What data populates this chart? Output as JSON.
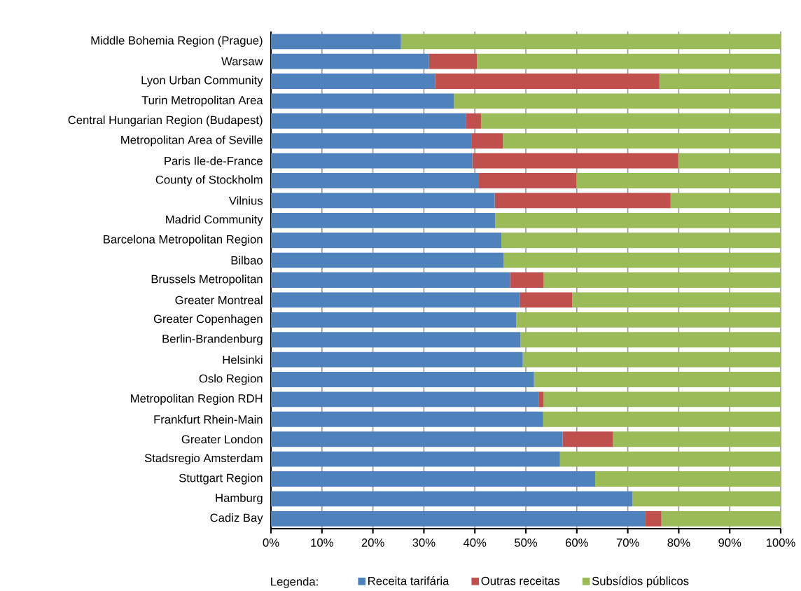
{
  "chart_data": {
    "type": "bar",
    "orientation": "horizontal",
    "stacked": true,
    "categories": [
      "Middle Bohemia Region (Prague)",
      "Warsaw",
      "Lyon Urban Community",
      "Turin Metropolitan Area",
      "Central Hungarian Region (Budapest)",
      "Metropolitan Area of Seville",
      "Paris Ile-de-France",
      "County of Stockholm",
      "Vilnius",
      "Madrid Community",
      "Barcelona Metropolitan Region",
      "Bilbao",
      "Brussels Metropolitan",
      "Greater Montreal",
      "Greater Copenhagen",
      "Berlin-Brandenburg",
      "Helsinki",
      "Oslo Region",
      "Metropolitan Region RDH",
      "Frankfurt Rhein-Main",
      "Greater London",
      "Stadsregio Amsterdam",
      "Stuttgart Region",
      "Hamburg",
      "Cadiz Bay"
    ],
    "series": [
      {
        "name": "Receita tarifária",
        "color": "#4f81bd",
        "values": [
          25.5,
          31.0,
          32.2,
          35.9,
          38.3,
          39.3,
          39.5,
          40.8,
          43.9,
          44.0,
          45.2,
          45.6,
          46.9,
          48.8,
          48.1,
          48.9,
          49.4,
          51.6,
          52.5,
          53.4,
          57.2,
          56.7,
          63.6,
          70.9,
          73.5
        ]
      },
      {
        "name": "Outras receitas",
        "color": "#c0504d",
        "values": [
          0,
          9.4,
          44.0,
          0,
          2.9,
          6.2,
          40.4,
          19.1,
          34.5,
          0,
          0,
          0,
          6.6,
          10.3,
          0,
          0,
          0,
          0,
          1.0,
          0,
          9.9,
          0,
          0,
          0,
          3.1
        ]
      },
      {
        "name": "Subsídios públicos",
        "color": "#9bbb59",
        "values": [
          74.5,
          59.6,
          23.8,
          64.1,
          58.8,
          54.5,
          20.1,
          40.1,
          21.6,
          56.0,
          54.8,
          54.4,
          46.5,
          40.9,
          51.9,
          51.1,
          50.6,
          48.4,
          46.5,
          46.6,
          32.9,
          43.3,
          36.4,
          29.1,
          23.4
        ]
      }
    ],
    "xlim": [
      0,
      100
    ],
    "xticks": [
      {
        "value": 0,
        "label": "0%"
      },
      {
        "value": 10,
        "label": "10%"
      },
      {
        "value": 20,
        "label": "20%"
      },
      {
        "value": 30,
        "label": "30%"
      },
      {
        "value": 40,
        "label": "40%"
      },
      {
        "value": 50,
        "label": "50%"
      },
      {
        "value": 60,
        "label": "60%"
      },
      {
        "value": 70,
        "label": "70%"
      },
      {
        "value": 80,
        "label": "80%"
      },
      {
        "value": 90,
        "label": "90%"
      },
      {
        "value": 100,
        "label": "100%"
      }
    ],
    "grid": "x",
    "legend": "bottom",
    "legend_title": "Legenda:"
  }
}
